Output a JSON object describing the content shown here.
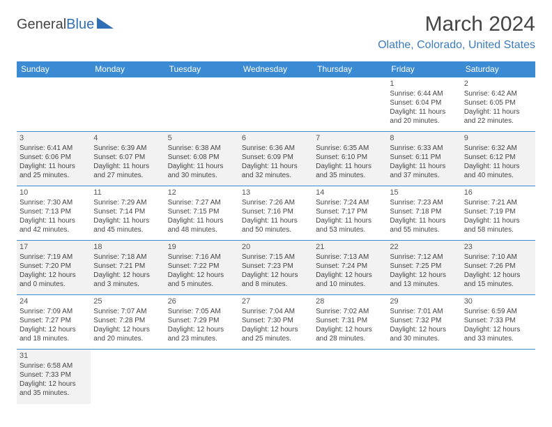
{
  "logo": {
    "text1": "General",
    "text2": "Blue"
  },
  "title": "March 2024",
  "location": "Olathe, Colorado, United States",
  "colors": {
    "header_bg": "#3b8bd4",
    "header_fg": "#ffffff",
    "accent": "#3b7bbf",
    "alt_row": "#f2f2f2",
    "logo_tri": "#2e6fb5"
  },
  "day_headers": [
    "Sunday",
    "Monday",
    "Tuesday",
    "Wednesday",
    "Thursday",
    "Friday",
    "Saturday"
  ],
  "weeks": [
    {
      "alt": false,
      "cells": [
        null,
        null,
        null,
        null,
        null,
        {
          "n": "1",
          "sr": "Sunrise: 6:44 AM",
          "ss": "Sunset: 6:04 PM",
          "d1": "Daylight: 11 hours",
          "d2": "and 20 minutes."
        },
        {
          "n": "2",
          "sr": "Sunrise: 6:42 AM",
          "ss": "Sunset: 6:05 PM",
          "d1": "Daylight: 11 hours",
          "d2": "and 22 minutes."
        }
      ]
    },
    {
      "alt": true,
      "cells": [
        {
          "n": "3",
          "sr": "Sunrise: 6:41 AM",
          "ss": "Sunset: 6:06 PM",
          "d1": "Daylight: 11 hours",
          "d2": "and 25 minutes."
        },
        {
          "n": "4",
          "sr": "Sunrise: 6:39 AM",
          "ss": "Sunset: 6:07 PM",
          "d1": "Daylight: 11 hours",
          "d2": "and 27 minutes."
        },
        {
          "n": "5",
          "sr": "Sunrise: 6:38 AM",
          "ss": "Sunset: 6:08 PM",
          "d1": "Daylight: 11 hours",
          "d2": "and 30 minutes."
        },
        {
          "n": "6",
          "sr": "Sunrise: 6:36 AM",
          "ss": "Sunset: 6:09 PM",
          "d1": "Daylight: 11 hours",
          "d2": "and 32 minutes."
        },
        {
          "n": "7",
          "sr": "Sunrise: 6:35 AM",
          "ss": "Sunset: 6:10 PM",
          "d1": "Daylight: 11 hours",
          "d2": "and 35 minutes."
        },
        {
          "n": "8",
          "sr": "Sunrise: 6:33 AM",
          "ss": "Sunset: 6:11 PM",
          "d1": "Daylight: 11 hours",
          "d2": "and 37 minutes."
        },
        {
          "n": "9",
          "sr": "Sunrise: 6:32 AM",
          "ss": "Sunset: 6:12 PM",
          "d1": "Daylight: 11 hours",
          "d2": "and 40 minutes."
        }
      ]
    },
    {
      "alt": false,
      "cells": [
        {
          "n": "10",
          "sr": "Sunrise: 7:30 AM",
          "ss": "Sunset: 7:13 PM",
          "d1": "Daylight: 11 hours",
          "d2": "and 42 minutes."
        },
        {
          "n": "11",
          "sr": "Sunrise: 7:29 AM",
          "ss": "Sunset: 7:14 PM",
          "d1": "Daylight: 11 hours",
          "d2": "and 45 minutes."
        },
        {
          "n": "12",
          "sr": "Sunrise: 7:27 AM",
          "ss": "Sunset: 7:15 PM",
          "d1": "Daylight: 11 hours",
          "d2": "and 48 minutes."
        },
        {
          "n": "13",
          "sr": "Sunrise: 7:26 AM",
          "ss": "Sunset: 7:16 PM",
          "d1": "Daylight: 11 hours",
          "d2": "and 50 minutes."
        },
        {
          "n": "14",
          "sr": "Sunrise: 7:24 AM",
          "ss": "Sunset: 7:17 PM",
          "d1": "Daylight: 11 hours",
          "d2": "and 53 minutes."
        },
        {
          "n": "15",
          "sr": "Sunrise: 7:23 AM",
          "ss": "Sunset: 7:18 PM",
          "d1": "Daylight: 11 hours",
          "d2": "and 55 minutes."
        },
        {
          "n": "16",
          "sr": "Sunrise: 7:21 AM",
          "ss": "Sunset: 7:19 PM",
          "d1": "Daylight: 11 hours",
          "d2": "and 58 minutes."
        }
      ]
    },
    {
      "alt": true,
      "cells": [
        {
          "n": "17",
          "sr": "Sunrise: 7:19 AM",
          "ss": "Sunset: 7:20 PM",
          "d1": "Daylight: 12 hours",
          "d2": "and 0 minutes."
        },
        {
          "n": "18",
          "sr": "Sunrise: 7:18 AM",
          "ss": "Sunset: 7:21 PM",
          "d1": "Daylight: 12 hours",
          "d2": "and 3 minutes."
        },
        {
          "n": "19",
          "sr": "Sunrise: 7:16 AM",
          "ss": "Sunset: 7:22 PM",
          "d1": "Daylight: 12 hours",
          "d2": "and 5 minutes."
        },
        {
          "n": "20",
          "sr": "Sunrise: 7:15 AM",
          "ss": "Sunset: 7:23 PM",
          "d1": "Daylight: 12 hours",
          "d2": "and 8 minutes."
        },
        {
          "n": "21",
          "sr": "Sunrise: 7:13 AM",
          "ss": "Sunset: 7:24 PM",
          "d1": "Daylight: 12 hours",
          "d2": "and 10 minutes."
        },
        {
          "n": "22",
          "sr": "Sunrise: 7:12 AM",
          "ss": "Sunset: 7:25 PM",
          "d1": "Daylight: 12 hours",
          "d2": "and 13 minutes."
        },
        {
          "n": "23",
          "sr": "Sunrise: 7:10 AM",
          "ss": "Sunset: 7:26 PM",
          "d1": "Daylight: 12 hours",
          "d2": "and 15 minutes."
        }
      ]
    },
    {
      "alt": false,
      "cells": [
        {
          "n": "24",
          "sr": "Sunrise: 7:09 AM",
          "ss": "Sunset: 7:27 PM",
          "d1": "Daylight: 12 hours",
          "d2": "and 18 minutes."
        },
        {
          "n": "25",
          "sr": "Sunrise: 7:07 AM",
          "ss": "Sunset: 7:28 PM",
          "d1": "Daylight: 12 hours",
          "d2": "and 20 minutes."
        },
        {
          "n": "26",
          "sr": "Sunrise: 7:05 AM",
          "ss": "Sunset: 7:29 PM",
          "d1": "Daylight: 12 hours",
          "d2": "and 23 minutes."
        },
        {
          "n": "27",
          "sr": "Sunrise: 7:04 AM",
          "ss": "Sunset: 7:30 PM",
          "d1": "Daylight: 12 hours",
          "d2": "and 25 minutes."
        },
        {
          "n": "28",
          "sr": "Sunrise: 7:02 AM",
          "ss": "Sunset: 7:31 PM",
          "d1": "Daylight: 12 hours",
          "d2": "and 28 minutes."
        },
        {
          "n": "29",
          "sr": "Sunrise: 7:01 AM",
          "ss": "Sunset: 7:32 PM",
          "d1": "Daylight: 12 hours",
          "d2": "and 30 minutes."
        },
        {
          "n": "30",
          "sr": "Sunrise: 6:59 AM",
          "ss": "Sunset: 7:33 PM",
          "d1": "Daylight: 12 hours",
          "d2": "and 33 minutes."
        }
      ]
    },
    {
      "alt": true,
      "cells": [
        {
          "n": "31",
          "sr": "Sunrise: 6:58 AM",
          "ss": "Sunset: 7:33 PM",
          "d1": "Daylight: 12 hours",
          "d2": "and 35 minutes."
        },
        null,
        null,
        null,
        null,
        null,
        null
      ]
    }
  ]
}
